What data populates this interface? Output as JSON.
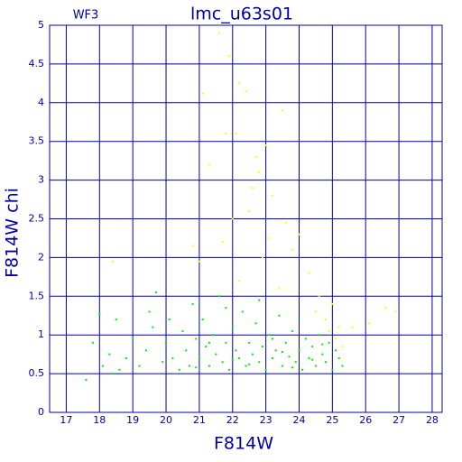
{
  "chart_data": {
    "type": "scatter",
    "title": "lmc_u63s01",
    "annotation": "WF3",
    "x_label": "F814W",
    "y_label": "F814W chi",
    "xlim": [
      16.5,
      28.3
    ],
    "ylim": [
      0,
      5
    ],
    "xticks": [
      17,
      18,
      19,
      20,
      21,
      22,
      23,
      24,
      25,
      26,
      27,
      28
    ],
    "yticks": [
      0,
      0.5,
      1,
      1.5,
      2,
      2.5,
      3,
      3.5,
      4,
      4.5,
      5
    ],
    "grid": true,
    "axis_color": "#0000aa",
    "series": [
      {
        "color": "#00ee00",
        "x": [
          17.6,
          17.8,
          18.0,
          18.1,
          18.3,
          18.5,
          18.6,
          18.8,
          19.0,
          19.2,
          19.4,
          19.6,
          19.7,
          19.9,
          20.0,
          20.1,
          20.2,
          20.4,
          20.5,
          20.6,
          20.7,
          20.8,
          20.9,
          21.0,
          21.1,
          21.2,
          21.3,
          21.4,
          21.5,
          21.6,
          21.7,
          21.8,
          21.9,
          22.0,
          22.1,
          22.2,
          22.3,
          22.4,
          22.5,
          22.6,
          22.7,
          22.8,
          22.9,
          23.0,
          23.1,
          23.2,
          23.3,
          23.4,
          23.5,
          23.6,
          23.7,
          23.8,
          23.9,
          24.0,
          24.1,
          24.2,
          24.3,
          24.4,
          24.5,
          24.6,
          24.7,
          24.8,
          24.9,
          25.0,
          25.1,
          25.2,
          25.3,
          21.3,
          22.5,
          23.2,
          23.8,
          24.4,
          20.9,
          22.0,
          23.5,
          24.7,
          21.8,
          22.8,
          19.5,
          18.4
        ],
        "values": [
          0.42,
          0.9,
          1.27,
          0.6,
          0.75,
          1.2,
          0.55,
          0.7,
          0.95,
          0.6,
          0.8,
          1.1,
          1.55,
          0.65,
          0.9,
          1.2,
          0.7,
          0.55,
          1.05,
          0.8,
          0.6,
          1.4,
          0.95,
          0.7,
          1.2,
          0.85,
          0.6,
          1.0,
          0.75,
          1.5,
          0.65,
          0.9,
          0.55,
          1.1,
          0.8,
          0.7,
          1.3,
          0.6,
          0.9,
          0.75,
          1.15,
          0.65,
          0.85,
          0.55,
          1.0,
          0.7,
          0.8,
          1.25,
          0.6,
          0.9,
          0.72,
          1.05,
          0.65,
          0.8,
          0.55,
          0.95,
          0.7,
          0.85,
          0.6,
          1.0,
          0.75,
          0.65,
          0.9,
          0.55,
          0.8,
          0.7,
          0.6,
          0.9,
          0.62,
          0.95,
          0.58,
          0.68,
          0.58,
          0.68,
          0.78,
          0.88,
          1.35,
          1.45,
          1.3,
          0.5
        ]
      },
      {
        "color": "#ffff00",
        "x": [
          21.1,
          21.6,
          21.9,
          22.2,
          22.4,
          21.8,
          22.1,
          21.3,
          22.7,
          23.0,
          23.5,
          22.6,
          22.8,
          23.2,
          22.5,
          23.6,
          24.0,
          21.7,
          20.8,
          23.8,
          22.9,
          24.3,
          21.0,
          22.2,
          23.4,
          24.6,
          25.0,
          24.8,
          25.2,
          24.5,
          25.3,
          26.6,
          26.9,
          25.6,
          26.1,
          18.4,
          25.1,
          24.9,
          22.0,
          23.1
        ],
        "values": [
          4.12,
          4.9,
          4.6,
          4.25,
          4.15,
          3.6,
          3.6,
          3.2,
          3.3,
          3.45,
          3.9,
          2.9,
          3.1,
          2.8,
          2.6,
          2.45,
          2.3,
          2.2,
          2.15,
          2.1,
          2.0,
          1.8,
          1.95,
          1.7,
          1.6,
          1.5,
          1.4,
          1.2,
          1.1,
          1.3,
          0.85,
          1.35,
          1.3,
          1.1,
          1.15,
          1.95,
          0.95,
          1.05,
          2.5,
          2.25
        ]
      }
    ]
  }
}
